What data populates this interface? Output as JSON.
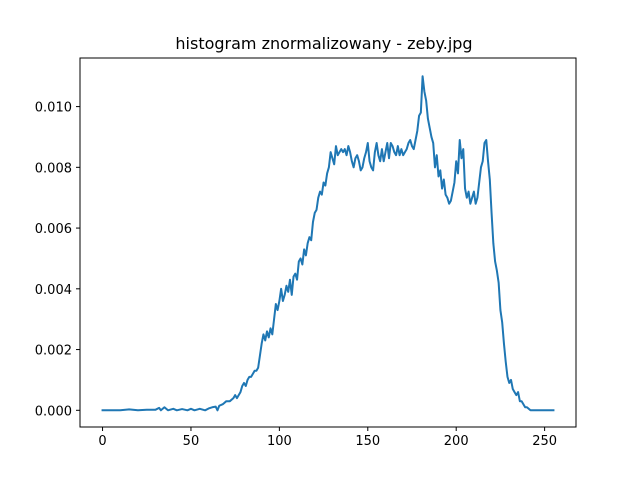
{
  "chart_data": {
    "type": "line",
    "title": "histogram znormalizowany - zeby.jpg",
    "xlabel": "",
    "ylabel": "",
    "xlim": [
      -12.75,
      267.75
    ],
    "ylim": [
      -0.00055,
      0.0116
    ],
    "x_ticks": [
      0,
      50,
      100,
      150,
      200,
      250
    ],
    "x_tick_labels": [
      "0",
      "50",
      "100",
      "150",
      "200",
      "250"
    ],
    "y_ticks": [
      0.0,
      0.002,
      0.004,
      0.006,
      0.008,
      0.01
    ],
    "y_tick_labels": [
      "0.000",
      "0.002",
      "0.004",
      "0.006",
      "0.008",
      "0.010"
    ],
    "grid": false,
    "legend": "none",
    "series": [
      {
        "color": "#1f77b4",
        "points": [
          [
            0,
            0.0
          ],
          [
            10,
            0.0
          ],
          [
            15,
            3e-05
          ],
          [
            20,
            0.0
          ],
          [
            25,
            2e-05
          ],
          [
            30,
            2e-05
          ],
          [
            32,
            8e-05
          ],
          [
            33,
            0.0
          ],
          [
            35,
            0.0001
          ],
          [
            37,
            0.0
          ],
          [
            40,
            5e-05
          ],
          [
            42,
            0.0
          ],
          [
            45,
            4e-05
          ],
          [
            48,
            0.0
          ],
          [
            50,
            5e-05
          ],
          [
            52,
            0.0
          ],
          [
            55,
            5e-05
          ],
          [
            58,
            0.0
          ],
          [
            60,
            6e-05
          ],
          [
            62,
            0.0001
          ],
          [
            64,
            0.00012
          ],
          [
            65,
            0.0
          ],
          [
            66,
            0.00015
          ],
          [
            68,
            0.0002
          ],
          [
            70,
            0.0003
          ],
          [
            72,
            0.0003
          ],
          [
            74,
            0.0004
          ],
          [
            75,
            0.0005
          ],
          [
            76,
            0.0004
          ],
          [
            77,
            0.0005
          ],
          [
            78,
            0.0006
          ],
          [
            79,
            0.0008
          ],
          [
            80,
            0.0009
          ],
          [
            81,
            0.0008
          ],
          [
            82,
            0.001
          ],
          [
            83,
            0.0011
          ],
          [
            84,
            0.0011
          ],
          [
            85,
            0.0012
          ],
          [
            86,
            0.0013
          ],
          [
            87,
            0.0013
          ],
          [
            88,
            0.0014
          ],
          [
            89,
            0.0018
          ],
          [
            90,
            0.0022
          ],
          [
            91,
            0.0025
          ],
          [
            92,
            0.0023
          ],
          [
            93,
            0.0026
          ],
          [
            94,
            0.0024
          ],
          [
            95,
            0.0027
          ],
          [
            96,
            0.0025
          ],
          [
            97,
            0.003
          ],
          [
            98,
            0.0035
          ],
          [
            99,
            0.0033
          ],
          [
            100,
            0.0036
          ],
          [
            101,
            0.004
          ],
          [
            102,
            0.0036
          ],
          [
            103,
            0.0038
          ],
          [
            104,
            0.0041
          ],
          [
            105,
            0.0039
          ],
          [
            106,
            0.0043
          ],
          [
            107,
            0.0038
          ],
          [
            108,
            0.0044
          ],
          [
            109,
            0.0045
          ],
          [
            110,
            0.0043
          ],
          [
            111,
            0.0049
          ],
          [
            112,
            0.005
          ],
          [
            113,
            0.0048
          ],
          [
            114,
            0.0053
          ],
          [
            115,
            0.0051
          ],
          [
            116,
            0.0055
          ],
          [
            117,
            0.0057
          ],
          [
            118,
            0.0056
          ],
          [
            119,
            0.0062
          ],
          [
            120,
            0.0065
          ],
          [
            121,
            0.0066
          ],
          [
            122,
            0.007
          ],
          [
            123,
            0.0072
          ],
          [
            124,
            0.0071
          ],
          [
            125,
            0.0075
          ],
          [
            126,
            0.0074
          ],
          [
            127,
            0.0078
          ],
          [
            128,
            0.008
          ],
          [
            129,
            0.0085
          ],
          [
            130,
            0.0083
          ],
          [
            131,
            0.0081
          ],
          [
            132,
            0.0087
          ],
          [
            133,
            0.0084
          ],
          [
            134,
            0.0085
          ],
          [
            135,
            0.0086
          ],
          [
            136,
            0.0085
          ],
          [
            137,
            0.0086
          ],
          [
            138,
            0.0084
          ],
          [
            139,
            0.0087
          ],
          [
            140,
            0.0085
          ],
          [
            141,
            0.0082
          ],
          [
            142,
            0.008
          ],
          [
            143,
            0.0083
          ],
          [
            144,
            0.0084
          ],
          [
            145,
            0.0082
          ],
          [
            146,
            0.0079
          ],
          [
            147,
            0.008
          ],
          [
            148,
            0.0083
          ],
          [
            149,
            0.0085
          ],
          [
            150,
            0.0088
          ],
          [
            151,
            0.0082
          ],
          [
            152,
            0.008
          ],
          [
            153,
            0.0079
          ],
          [
            154,
            0.0085
          ],
          [
            155,
            0.0088
          ],
          [
            156,
            0.0084
          ],
          [
            157,
            0.0082
          ],
          [
            158,
            0.0086
          ],
          [
            159,
            0.0082
          ],
          [
            160,
            0.0085
          ],
          [
            161,
            0.0088
          ],
          [
            162,
            0.0083
          ],
          [
            163,
            0.0088
          ],
          [
            164,
            0.0087
          ],
          [
            165,
            0.0085
          ],
          [
            166,
            0.0084
          ],
          [
            167,
            0.0087
          ],
          [
            168,
            0.0084
          ],
          [
            169,
            0.0086
          ],
          [
            170,
            0.0084
          ],
          [
            171,
            0.0085
          ],
          [
            172,
            0.0086
          ],
          [
            173,
            0.0088
          ],
          [
            174,
            0.0089
          ],
          [
            175,
            0.0087
          ],
          [
            176,
            0.0086
          ],
          [
            177,
            0.0089
          ],
          [
            178,
            0.0092
          ],
          [
            179,
            0.0097
          ],
          [
            180,
            0.0098
          ],
          [
            181,
            0.011
          ],
          [
            182,
            0.0105
          ],
          [
            183,
            0.0102
          ],
          [
            184,
            0.0096
          ],
          [
            185,
            0.0093
          ],
          [
            186,
            0.009
          ],
          [
            187,
            0.0088
          ],
          [
            188,
            0.008
          ],
          [
            189,
            0.0084
          ],
          [
            190,
            0.0077
          ],
          [
            191,
            0.0079
          ],
          [
            192,
            0.0073
          ],
          [
            193,
            0.0076
          ],
          [
            194,
            0.0071
          ],
          [
            195,
            0.007
          ],
          [
            196,
            0.0068
          ],
          [
            197,
            0.0069
          ],
          [
            198,
            0.0072
          ],
          [
            199,
            0.0075
          ],
          [
            200,
            0.0082
          ],
          [
            201,
            0.0078
          ],
          [
            202,
            0.0089
          ],
          [
            203,
            0.0083
          ],
          [
            204,
            0.0086
          ],
          [
            205,
            0.0073
          ],
          [
            206,
            0.007
          ],
          [
            207,
            0.0072
          ],
          [
            208,
            0.0068
          ],
          [
            209,
            0.007
          ],
          [
            210,
            0.0072
          ],
          [
            211,
            0.0068
          ],
          [
            212,
            0.007
          ],
          [
            213,
            0.0075
          ],
          [
            214,
            0.008
          ],
          [
            215,
            0.0082
          ],
          [
            216,
            0.0088
          ],
          [
            217,
            0.0089
          ],
          [
            218,
            0.0082
          ],
          [
            219,
            0.0076
          ],
          [
            220,
            0.0065
          ],
          [
            221,
            0.0055
          ],
          [
            222,
            0.0049
          ],
          [
            223,
            0.0046
          ],
          [
            224,
            0.0042
          ],
          [
            225,
            0.0033
          ],
          [
            226,
            0.0029
          ],
          [
            227,
            0.0022
          ],
          [
            228,
            0.0016
          ],
          [
            229,
            0.0011
          ],
          [
            230,
            0.0009
          ],
          [
            231,
            0.001
          ],
          [
            232,
            0.0007
          ],
          [
            233,
            0.0006
          ],
          [
            234,
            0.0005
          ],
          [
            235,
            0.0006
          ],
          [
            236,
            0.0003
          ],
          [
            237,
            0.0003
          ],
          [
            238,
            0.0002
          ],
          [
            239,
            0.0001
          ],
          [
            240,
            0.0001
          ],
          [
            242,
            0.0
          ],
          [
            245,
            0.0
          ],
          [
            250,
            0.0
          ],
          [
            255,
            0.0
          ]
        ]
      }
    ]
  }
}
